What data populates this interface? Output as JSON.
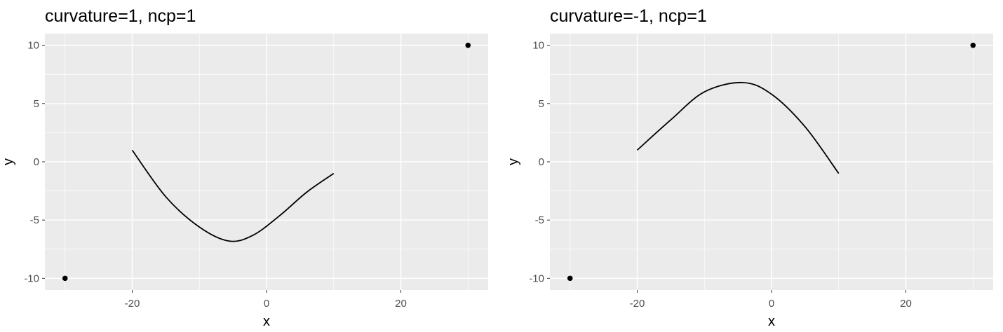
{
  "chart_data": [
    {
      "type": "scatter",
      "title": "curvature=1, ncp=1",
      "xlabel": "x",
      "ylabel": "y",
      "xlim": [
        -33,
        33
      ],
      "ylim": [
        -11,
        11
      ],
      "x_ticks": [
        -20,
        0,
        20
      ],
      "y_ticks": [
        -10,
        -5,
        0,
        5,
        10
      ],
      "x_tick_labels": [
        "-20",
        "0",
        "20"
      ],
      "y_tick_labels": [
        "-10",
        "-5",
        "0",
        "5",
        "10"
      ],
      "grid": true,
      "points": [
        {
          "x": -30,
          "y": -10
        },
        {
          "x": 30,
          "y": 10
        }
      ],
      "curve": {
        "from": {
          "x": -20,
          "y": 1
        },
        "to": {
          "x": 10,
          "y": -1
        },
        "curvature": 1,
        "ncp": 1,
        "path": [
          {
            "x": -20,
            "y": 1
          },
          {
            "x": -15,
            "y": -3
          },
          {
            "x": -10,
            "y": -5.6
          },
          {
            "x": -5.6,
            "y": -6.8
          },
          {
            "x": -2,
            "y": -6.3
          },
          {
            "x": 2,
            "y": -4.6
          },
          {
            "x": 6,
            "y": -2.6
          },
          {
            "x": 10,
            "y": -1
          }
        ]
      },
      "colors": {
        "panel": "#ebebeb",
        "grid": "#ffffff",
        "ink": "#000000"
      }
    },
    {
      "type": "scatter",
      "title": "curvature=-1, ncp=1",
      "xlabel": "x",
      "ylabel": "y",
      "xlim": [
        -33,
        33
      ],
      "ylim": [
        -11,
        11
      ],
      "x_ticks": [
        -20,
        0,
        20
      ],
      "y_ticks": [
        -10,
        -5,
        0,
        5,
        10
      ],
      "x_tick_labels": [
        "-20",
        "0",
        "20"
      ],
      "y_tick_labels": [
        "-10",
        "-5",
        "0",
        "5",
        "10"
      ],
      "grid": true,
      "points": [
        {
          "x": -30,
          "y": -10
        },
        {
          "x": 30,
          "y": 10
        }
      ],
      "curve": {
        "from": {
          "x": -20,
          "y": 1
        },
        "to": {
          "x": 10,
          "y": -1
        },
        "curvature": -1,
        "ncp": 1,
        "path": [
          {
            "x": -20,
            "y": 1
          },
          {
            "x": -15,
            "y": 3.6
          },
          {
            "x": -10,
            "y": 6
          },
          {
            "x": -4.3,
            "y": 6.8
          },
          {
            "x": 0,
            "y": 5.8
          },
          {
            "x": 5,
            "y": 3
          },
          {
            "x": 10,
            "y": -1
          }
        ]
      },
      "colors": {
        "panel": "#ebebeb",
        "grid": "#ffffff",
        "ink": "#000000"
      }
    }
  ]
}
